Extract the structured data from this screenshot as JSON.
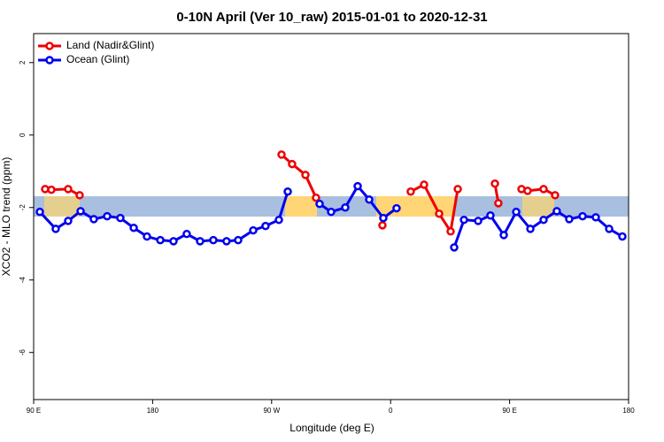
{
  "chart_data": {
    "type": "line",
    "title": "0-10N April (Ver 10_raw)   2015-01-01 to 2020-12-31",
    "x_label": "Longitude (deg E)",
    "y_label": "XCO2 - MLO trend (ppm)",
    "xlim": [
      90,
      540
    ],
    "xticks": [
      {
        "value": 90,
        "label": "90 E"
      },
      {
        "value": 180,
        "label": "180"
      },
      {
        "value": 270,
        "label": "90 W"
      },
      {
        "value": 360,
        "label": "0"
      },
      {
        "value": 450,
        "label": "90 E"
      },
      {
        "value": 540,
        "label": "180"
      }
    ],
    "ylim": [
      -7.3,
      2.8
    ],
    "yticks": [
      2,
      0,
      -2,
      -4,
      -6
    ],
    "legend": "top-left",
    "series": [
      {
        "name": "Land (Nadir&Glint)",
        "color": "#ee0000",
        "x": [
          98.7,
          103.4,
          116.1,
          124.8,
          null,
          277.5,
          285.5,
          295.6,
          303.6,
          null,
          353.8,
          null,
          375.2,
          385.3,
          396.7,
          405.4,
          410.8,
          null,
          438.9,
          441.5,
          null,
          459.0,
          463.6,
          475.7,
          484.4
        ],
        "values": [
          -1.49,
          -1.51,
          -1.49,
          -1.66,
          null,
          -0.54,
          -0.8,
          -1.1,
          -1.73,
          null,
          -2.49,
          null,
          -1.56,
          -1.37,
          -2.17,
          -2.66,
          -1.49,
          null,
          -1.34,
          -1.88,
          null,
          -1.49,
          -1.54,
          -1.49,
          -1.66
        ]
      },
      {
        "name": "Ocean (Glint)",
        "color": "#0000ee",
        "x": [
          94.7,
          106.7,
          116.1,
          125.5,
          135.5,
          145.6,
          155.6,
          165.7,
          175.7,
          185.8,
          195.8,
          205.8,
          215.9,
          225.9,
          235.9,
          244.7,
          256.1,
          265.4,
          275.5,
          282.2,
          null,
          306.3,
          315.0,
          325.7,
          335.1,
          343.8,
          354.5,
          364.5,
          null,
          408.1,
          415.5,
          426.2,
          435.5,
          445.6,
          455.0,
          465.7,
          475.7,
          485.7,
          495.1,
          505.2,
          515.2,
          525.3,
          535.3
        ],
        "values": [
          -2.12,
          -2.59,
          -2.37,
          -2.1,
          -2.32,
          -2.24,
          -2.29,
          -2.56,
          -2.8,
          -2.9,
          -2.93,
          -2.73,
          -2.93,
          -2.9,
          -2.93,
          -2.9,
          -2.63,
          -2.51,
          -2.34,
          -1.56,
          null,
          -1.9,
          -2.12,
          -2.0,
          -1.41,
          -1.78,
          -2.29,
          -2.02,
          null,
          -3.1,
          -2.34,
          -2.37,
          -2.22,
          -2.76,
          -2.12,
          -2.59,
          -2.34,
          -2.1,
          -2.32,
          -2.24,
          -2.27,
          -2.59,
          -2.8
        ]
      }
    ]
  }
}
